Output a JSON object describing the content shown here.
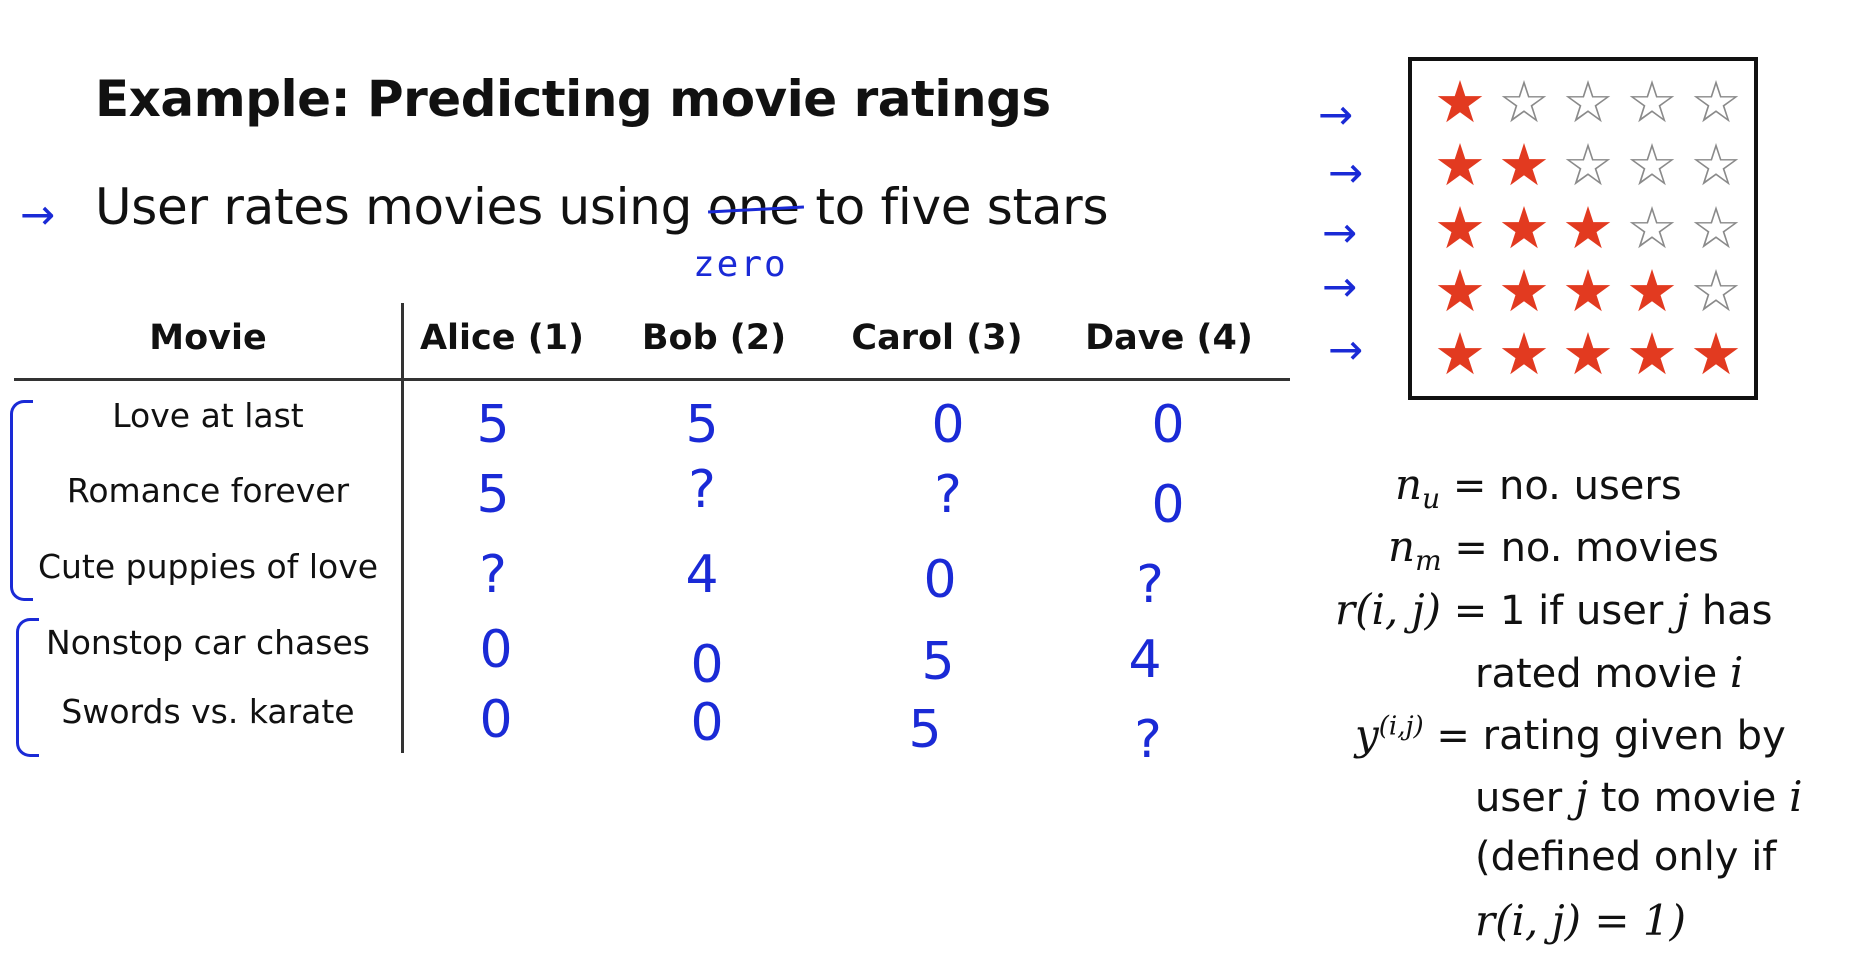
{
  "title": "Example: Predicting movie ratings",
  "bullet": {
    "prefix": "User rates movies using ",
    "struck": "one",
    "suffix": " to five stars",
    "handwritten_correction": "zero",
    "arrow": "→"
  },
  "table": {
    "headers": [
      "Movie",
      "Alice (1)",
      "Bob (2)",
      "Carol (3)",
      "Dave (4)"
    ],
    "rows": [
      {
        "movie": "Love at last",
        "ratings": [
          "5",
          "5",
          "0",
          "0"
        ]
      },
      {
        "movie": "Romance forever",
        "ratings": [
          "5",
          "?",
          "?",
          "0"
        ]
      },
      {
        "movie": "Cute puppies of love",
        "ratings": [
          "?",
          "4",
          "0",
          "?"
        ]
      },
      {
        "movie": "Nonstop car chases",
        "ratings": [
          "0",
          "0",
          "5",
          "4"
        ]
      },
      {
        "movie": "Swords vs. karate",
        "ratings": [
          "0",
          "0",
          "5",
          "?"
        ]
      }
    ]
  },
  "star_scale": {
    "max": 5,
    "levels": [
      1,
      2,
      3,
      4,
      5
    ],
    "on_color": "#e23a20",
    "off_color": "#8a8a8a"
  },
  "definitions": {
    "nu_lhs": "n",
    "nu_sub": "u",
    "nu_rhs": "= no. users",
    "nm_lhs": "n",
    "nm_sub": "m",
    "nm_rhs": "= no. movies",
    "r_lhs": "r(i, j)",
    "r_rhs_a": "= 1 if user ",
    "r_rhs_var": "j",
    "r_rhs_b": " has",
    "r_line2_a": "rated movie ",
    "r_line2_var": "i",
    "y_lhs": "y",
    "y_sup": "(i,j)",
    "y_rhs": "= rating given by",
    "y_line2_a": "user ",
    "y_line2_var": "j",
    "y_line2_b": " to movie ",
    "y_line2_var2": "i",
    "y_line3": "(defined only if",
    "y_line4": "r(i, j) = 1)"
  }
}
